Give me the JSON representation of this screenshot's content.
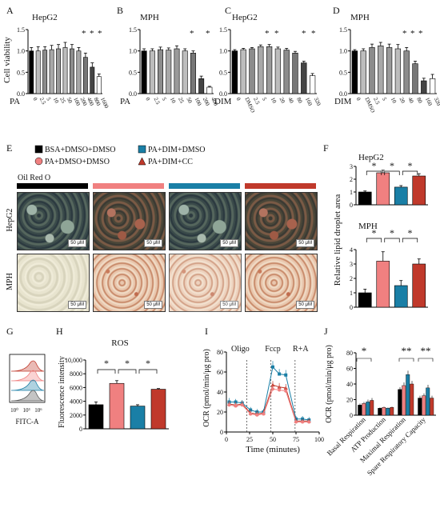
{
  "panels": {
    "A": "A",
    "B": "B",
    "C": "C",
    "D": "D",
    "E": "E",
    "F": "F",
    "G": "G",
    "H": "H",
    "I": "I",
    "J": "J"
  },
  "colors": {
    "black": "#000000",
    "pink": "#f08080",
    "blue": "#1a7fa6",
    "red": "#c0392b",
    "darkgray": "#555555",
    "gray": "#9a9a9a",
    "lightgray": "#bdbdbd",
    "white": "#ffffff"
  },
  "legend_E": [
    {
      "label": "BSA+DMSO+DMSO",
      "color": "#000000",
      "shape": "square"
    },
    {
      "label": "PA+DIM+DMSO",
      "color": "#1a7fa6",
      "shape": "square"
    },
    {
      "label": "PA+DMSO+DMSO",
      "color": "#f08080",
      "shape": "circle"
    },
    {
      "label": "PA+DIM+CC",
      "color": "#c0392b",
      "shape": "triangle"
    }
  ],
  "image_labels": {
    "stain": "Oil Red O",
    "row1": "HepG2",
    "row2": "MPH",
    "scale": "50 μM"
  },
  "chart_data": [
    {
      "id": "A",
      "type": "bar",
      "title": "HepG2",
      "ylabel": "Cell viability",
      "xlabel": "PA",
      "categories": [
        "0",
        "2.5",
        "5",
        "10",
        "25",
        "50",
        "100",
        "200",
        "400",
        "800",
        "1600"
      ],
      "values": [
        1.0,
        1.0,
        1.02,
        1.03,
        1.05,
        1.08,
        1.05,
        1.0,
        0.85,
        0.62,
        0.4
      ],
      "errors": [
        0.08,
        0.1,
        0.08,
        0.1,
        0.1,
        0.12,
        0.1,
        0.08,
        0.1,
        0.1,
        0.06
      ],
      "ylim": [
        0,
        1.5
      ],
      "yticks": [
        0,
        0.5,
        1.0,
        1.5
      ],
      "ytick_labels": [
        "0.0",
        "0.5",
        "1.0",
        "1.5"
      ],
      "sig": [
        "*",
        "*",
        "*"
      ]
    },
    {
      "id": "B",
      "type": "bar",
      "title": "MPH",
      "xlabel": "PA",
      "categories": [
        "0",
        "2.5",
        "5",
        "10",
        "25",
        "50",
        "100",
        "200",
        "400"
      ],
      "values": [
        1.0,
        1.0,
        1.03,
        1.02,
        1.05,
        1.0,
        0.95,
        0.35,
        0.15
      ],
      "errors": [
        0.05,
        0.05,
        0.06,
        0.05,
        0.07,
        0.05,
        0.05,
        0.06,
        0.02
      ],
      "ylim": [
        0,
        1.5
      ],
      "yticks": [
        0,
        0.5,
        1.0,
        1.5
      ],
      "ytick_labels": [
        "0.0",
        "0.5",
        "1.0",
        "1.5"
      ],
      "sig": [
        "*",
        "*"
      ]
    },
    {
      "id": "C",
      "type": "bar",
      "title": "HepG2",
      "xlabel": "DIM",
      "categories": [
        "0",
        "DMSO",
        "2.5",
        "5",
        "10",
        "20",
        "40",
        "80",
        "160",
        "320"
      ],
      "values": [
        1.0,
        1.03,
        1.05,
        1.1,
        1.1,
        1.05,
        1.02,
        0.95,
        0.72,
        0.42
      ],
      "errors": [
        0.03,
        0.03,
        0.03,
        0.04,
        0.05,
        0.04,
        0.04,
        0.04,
        0.04,
        0.05
      ],
      "ylim": [
        0,
        1.5
      ],
      "yticks": [
        0,
        0.5,
        1.0,
        1.5
      ],
      "ytick_labels": [
        "0.0",
        "0.5",
        "1.0",
        "1.5"
      ],
      "sig": [
        "*",
        "*",
        "*",
        "*"
      ]
    },
    {
      "id": "D",
      "type": "bar",
      "title": "MPH",
      "xlabel": "DIM",
      "categories": [
        "0",
        "DMSO",
        "2.5",
        "5",
        "10",
        "20",
        "40",
        "80",
        "160",
        "320"
      ],
      "values": [
        1.0,
        1.0,
        1.08,
        1.12,
        1.08,
        1.05,
        1.0,
        0.7,
        0.3,
        0.35
      ],
      "errors": [
        0.03,
        0.05,
        0.08,
        0.08,
        0.08,
        0.1,
        0.08,
        0.06,
        0.06,
        0.1
      ],
      "ylim": [
        0,
        1.5
      ],
      "yticks": [
        0,
        0.5,
        1.0,
        1.5
      ],
      "ytick_labels": [
        "0.0",
        "0.5",
        "1.0",
        "1.5"
      ],
      "sig": [
        "*",
        "*",
        "*"
      ]
    },
    {
      "id": "F1",
      "type": "bar",
      "title": "HepG2",
      "ylabel": "Relative lipid droplet area",
      "values": [
        1.0,
        2.5,
        1.38,
        2.25
      ],
      "errors": [
        0.08,
        0.2,
        0.12,
        0.18
      ],
      "ylim": [
        0,
        3
      ],
      "yticks": [
        0,
        1,
        2,
        3
      ],
      "ytick_labels": [
        "0",
        "1",
        "2",
        "3"
      ],
      "sig": [
        "*",
        "*",
        "*"
      ]
    },
    {
      "id": "F2",
      "type": "bar",
      "title": "MPH",
      "values": [
        1.0,
        3.2,
        1.5,
        3.0
      ],
      "errors": [
        0.25,
        0.65,
        0.35,
        0.35
      ],
      "ylim": [
        0,
        4
      ],
      "yticks": [
        0,
        1,
        2,
        3,
        4
      ],
      "ytick_labels": [
        "0",
        "1",
        "2",
        "3",
        "4"
      ],
      "sig": [
        "*",
        "*",
        "*"
      ]
    },
    {
      "id": "G",
      "type": "histogram",
      "xlabel": "FITC-A",
      "xtick_labels": [
        "10⁰",
        "10³",
        "10⁶"
      ]
    },
    {
      "id": "H",
      "type": "bar",
      "title": "ROS",
      "ylabel": "Fluorescence intensity",
      "values": [
        3500,
        6600,
        3300,
        5750
      ],
      "errors": [
        400,
        400,
        200,
        100
      ],
      "ylim": [
        0,
        10000
      ],
      "yticks": [
        0,
        2000,
        4000,
        6000,
        8000,
        10000
      ],
      "ytick_labels": [
        "0",
        "2000",
        "4000",
        "6000",
        "8000",
        "10,000"
      ],
      "sig": [
        "*",
        "*",
        "*"
      ]
    },
    {
      "id": "I",
      "type": "line",
      "ylabel": "OCR (pmol/min/μg pro)",
      "xlabel": "Time (minutes)",
      "annotations": [
        "Oligo",
        "Fccp",
        "R+A"
      ],
      "x": [
        3,
        10,
        17,
        26,
        33,
        40,
        50,
        57,
        64,
        75,
        82,
        89
      ],
      "series": [
        {
          "color": "#1a7fa6",
          "values": [
            30,
            30,
            29,
            22,
            20,
            20,
            65,
            58,
            57,
            13,
            13,
            12
          ],
          "errors": [
            4,
            3,
            3,
            3,
            3,
            3,
            6,
            5,
            5,
            3,
            3,
            3
          ]
        },
        {
          "color": "#c0392b",
          "values": [
            28,
            27,
            28,
            19,
            18,
            19,
            47,
            45,
            44,
            11,
            11,
            11
          ],
          "errors": [
            3,
            3,
            3,
            3,
            3,
            3,
            4,
            4,
            4,
            2,
            2,
            2
          ]
        },
        {
          "color": "#f08080",
          "values": [
            27,
            26,
            27,
            18,
            17,
            18,
            43,
            42,
            41,
            10,
            10,
            10
          ],
          "errors": [
            3,
            3,
            3,
            3,
            3,
            3,
            4,
            4,
            4,
            2,
            2,
            2
          ]
        }
      ],
      "xlim": [
        0,
        100
      ],
      "xticks": [
        0,
        25,
        50,
        75,
        100
      ],
      "xtick_labels": [
        "0",
        "25",
        "50",
        "75",
        "100"
      ],
      "ylim": [
        0,
        80
      ],
      "yticks": [
        0,
        20,
        40,
        60,
        80
      ],
      "ytick_labels": [
        "0",
        "20",
        "40",
        "60",
        "80"
      ]
    },
    {
      "id": "J",
      "type": "bar",
      "ylabel": "OCR (pmol/min/μg pro)",
      "categories": [
        "Basal Respiration",
        "ATP Production",
        "Maximal Respiration",
        "Spare Respiratory Capacity"
      ],
      "values": [
        [
          13,
          15,
          17,
          19
        ],
        [
          9,
          10,
          9,
          10
        ],
        [
          33,
          38,
          52,
          40
        ],
        [
          22,
          25,
          35,
          22
        ]
      ],
      "errors": [
        [
          2,
          2,
          3,
          3
        ],
        [
          1,
          1,
          1,
          1
        ],
        [
          3,
          4,
          5,
          4
        ],
        [
          3,
          3,
          4,
          3
        ]
      ],
      "ylim": [
        0,
        80
      ],
      "yticks": [
        0,
        20,
        40,
        60,
        80
      ],
      "ytick_labels": [
        "0",
        "20",
        "40",
        "60",
        "80"
      ],
      "sig": [
        "*",
        "**",
        "**"
      ]
    }
  ]
}
